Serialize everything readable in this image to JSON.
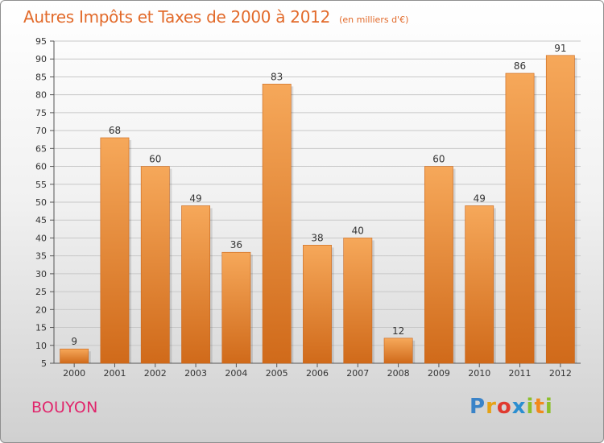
{
  "header": {
    "title": "Autres Impôts et Taxes de 2000 à 2012",
    "unit": "(en milliers d'€)"
  },
  "commune": "BOUYON",
  "logo": {
    "text": "Proxiti"
  },
  "colors": {
    "bar_light": "#f6a85a",
    "bar_dark": "#d06a1a",
    "title": "#e26a2a",
    "commune": "#e0256b",
    "grid": "#c8c8c8"
  },
  "chart_data": {
    "type": "bar",
    "title": "Autres Impôts et Taxes de 2000 à 2012",
    "subtitle": "(en milliers d'€)",
    "categories": [
      "2000",
      "2001",
      "2002",
      "2003",
      "2004",
      "2005",
      "2006",
      "2007",
      "2008",
      "2009",
      "2010",
      "2011",
      "2012"
    ],
    "values": [
      9,
      68,
      60,
      49,
      36,
      83,
      38,
      40,
      12,
      60,
      49,
      86,
      91
    ],
    "data_labels": [
      "9",
      "68",
      "60",
      "49",
      "36",
      "83",
      "38",
      "40",
      "12",
      "60",
      "49",
      "86",
      "91"
    ],
    "ylim": [
      5,
      95
    ],
    "yticks": [
      5,
      10,
      15,
      20,
      25,
      30,
      35,
      40,
      45,
      50,
      55,
      60,
      65,
      70,
      75,
      80,
      85,
      90,
      95
    ],
    "grid": true,
    "xlabel": "",
    "ylabel": ""
  }
}
